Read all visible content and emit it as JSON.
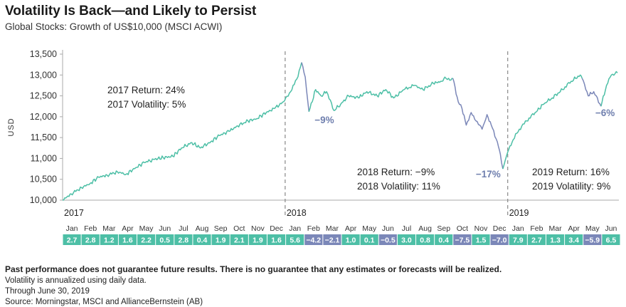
{
  "header": {
    "title": "Volatility Is Back—and Likely to Persist",
    "subtitle": "Global Stocks: Growth of US$10,000 (MSCI ACWI)"
  },
  "footer": {
    "disclaimer": "Past performance does not guarantee future results. There is no guarantee that any estimates or forecasts will be realized.",
    "note": "Volatility is annualized using daily data.",
    "date": "Through June 30, 2019",
    "source": "Source: Morningstar, MSCI and AllianceBernstein (AB)"
  },
  "colors": {
    "up": "#4dbfa6",
    "down": "#7b87b8",
    "text_down": "#6f7fae",
    "axis": "#aaaaaa",
    "divider": "#888888"
  },
  "chart_data": {
    "type": "line",
    "title": "Global Stocks: Growth of US$10,000 (MSCI ACWI)",
    "ylabel": "USD",
    "xlabel": "",
    "ylim": [
      10000,
      13500
    ],
    "y_ticks": [
      10000,
      10500,
      11000,
      11500,
      12000,
      12500,
      13000,
      13500
    ],
    "y_tick_labels": [
      "10,000",
      "10,500",
      "11,000",
      "11,500",
      "12,000",
      "12,500",
      "13,000",
      "13,500"
    ],
    "year_labels": [
      "2017",
      "2018",
      "2019"
    ],
    "x_start": "2017-01-01",
    "x_end": "2019-06-30",
    "series": [
      {
        "points": [
          [
            "2017-01-01",
            10000
          ],
          [
            "2017-01-15",
            10150
          ],
          [
            "2017-02-01",
            10300
          ],
          [
            "2017-02-15",
            10400
          ],
          [
            "2017-03-01",
            10550
          ],
          [
            "2017-03-15",
            10600
          ],
          [
            "2017-04-01",
            10680
          ],
          [
            "2017-04-15",
            10620
          ],
          [
            "2017-05-01",
            10780
          ],
          [
            "2017-05-15",
            10900
          ],
          [
            "2017-06-01",
            10980
          ],
          [
            "2017-06-15",
            11020
          ],
          [
            "2017-07-01",
            11050
          ],
          [
            "2017-07-15",
            11250
          ],
          [
            "2017-08-01",
            11380
          ],
          [
            "2017-08-15",
            11250
          ],
          [
            "2017-09-01",
            11400
          ],
          [
            "2017-09-15",
            11550
          ],
          [
            "2017-10-01",
            11650
          ],
          [
            "2017-10-15",
            11780
          ],
          [
            "2017-11-01",
            11900
          ],
          [
            "2017-11-15",
            11950
          ],
          [
            "2017-12-01",
            12100
          ],
          [
            "2017-12-15",
            12200
          ],
          [
            "2017-12-31",
            12380
          ],
          [
            "2018-01-10",
            12600
          ],
          [
            "2018-01-20",
            12900
          ],
          [
            "2018-01-28",
            13300
          ]
        ]
      },
      {
        "name": "-9%",
        "points": [
          [
            "2018-01-28",
            13300
          ],
          [
            "2018-02-03",
            12950
          ],
          [
            "2018-02-09",
            12120
          ]
        ]
      },
      {
        "points": [
          [
            "2018-02-09",
            12120
          ],
          [
            "2018-02-20",
            12650
          ],
          [
            "2018-03-01",
            12500
          ],
          [
            "2018-03-10",
            12600
          ],
          [
            "2018-03-22",
            12150
          ],
          [
            "2018-04-02",
            12300
          ],
          [
            "2018-04-15",
            12500
          ],
          [
            "2018-05-01",
            12450
          ],
          [
            "2018-05-15",
            12600
          ],
          [
            "2018-06-01",
            12500
          ],
          [
            "2018-06-15",
            12650
          ],
          [
            "2018-06-28",
            12450
          ],
          [
            "2018-07-15",
            12650
          ],
          [
            "2018-08-01",
            12750
          ],
          [
            "2018-08-15",
            12650
          ],
          [
            "2018-09-01",
            12800
          ],
          [
            "2018-09-15",
            12850
          ],
          [
            "2018-09-20",
            12950
          ],
          [
            "2018-09-30",
            12880
          ],
          [
            "2018-10-03",
            12920
          ]
        ]
      },
      {
        "name": "-17%",
        "points": [
          [
            "2018-10-03",
            12920
          ],
          [
            "2018-10-12",
            12350
          ],
          [
            "2018-10-18",
            12200
          ],
          [
            "2018-10-25",
            11800
          ],
          [
            "2018-11-02",
            12100
          ],
          [
            "2018-11-10",
            11900
          ],
          [
            "2018-11-20",
            11700
          ],
          [
            "2018-11-28",
            12050
          ],
          [
            "2018-12-05",
            11800
          ],
          [
            "2018-12-15",
            11400
          ],
          [
            "2018-12-20",
            11100
          ],
          [
            "2018-12-24",
            10750
          ]
        ]
      },
      {
        "points": [
          [
            "2018-12-24",
            10750
          ],
          [
            "2019-01-01",
            11150
          ],
          [
            "2019-01-10",
            11450
          ],
          [
            "2019-01-20",
            11700
          ],
          [
            "2019-02-01",
            11900
          ],
          [
            "2019-02-15",
            12100
          ],
          [
            "2019-03-01",
            12300
          ],
          [
            "2019-03-15",
            12450
          ],
          [
            "2019-04-01",
            12650
          ],
          [
            "2019-04-15",
            12850
          ],
          [
            "2019-04-30",
            13000
          ],
          [
            "2019-05-03",
            12920
          ]
        ]
      },
      {
        "name": "-6%",
        "points": [
          [
            "2019-05-03",
            12920
          ],
          [
            "2019-05-13",
            12500
          ],
          [
            "2019-05-22",
            12600
          ],
          [
            "2019-06-03",
            12250
          ]
        ]
      },
      {
        "points": [
          [
            "2019-06-03",
            12250
          ],
          [
            "2019-06-12",
            12750
          ],
          [
            "2019-06-20",
            13000
          ],
          [
            "2019-06-30",
            13050
          ]
        ]
      }
    ],
    "drawdowns": [
      {
        "label": "-9%",
        "at": "2018-02-09",
        "value": 12120
      },
      {
        "label": "-17%",
        "at": "2018-12-24",
        "value": 10750
      },
      {
        "label": "-6%",
        "at": "2019-06-03",
        "value": 12250
      }
    ],
    "annotations": {
      "y2017": {
        "return": "2017 Return: 24%",
        "volatility": "2017 Volatility: 5%"
      },
      "y2018": {
        "return": "2018 Return: −9%",
        "volatility": "2018 Volatility: 11%"
      },
      "y2019": {
        "return": "2019 Return: 16%",
        "volatility": "2019 Volatility: 9%"
      }
    },
    "monthly_returns": {
      "months": [
        "Jan",
        "Feb",
        "Mar",
        "Apr",
        "May",
        "Jun",
        "Jul",
        "Aug",
        "Sep",
        "Oct",
        "Nov",
        "Dec",
        "Jan",
        "Feb",
        "Mar",
        "Apr",
        "May",
        "Jun",
        "Jul",
        "Aug",
        "Sep",
        "Oct",
        "Nov",
        "Dec",
        "Jan",
        "Feb",
        "Mar",
        "Apr",
        "May",
        "Jun"
      ],
      "values": [
        2.7,
        2.8,
        1.2,
        1.6,
        2.2,
        0.5,
        2.8,
        0.4,
        1.9,
        2.1,
        1.9,
        1.6,
        5.6,
        -4.2,
        -2.1,
        1.0,
        0.1,
        -0.5,
        3.0,
        0.8,
        0.4,
        -7.5,
        1.5,
        -7.0,
        7.9,
        2.7,
        1.3,
        3.4,
        -5.9,
        6.5
      ],
      "labels": [
        "2.7",
        "2.8",
        "1.2",
        "1.6",
        "2.2",
        "0.5",
        "2.8",
        "0.4",
        "1.9",
        "2.1",
        "1.9",
        "1.6",
        "5.6",
        "−4.2",
        "−2.1",
        "1.0",
        "0.1",
        "−0.5",
        "3.0",
        "0.8",
        "0.4",
        "−7.5",
        "1.5",
        "−7.0",
        "7.9",
        "2.7",
        "1.3",
        "3.4",
        "−5.9",
        "6.5"
      ]
    }
  }
}
